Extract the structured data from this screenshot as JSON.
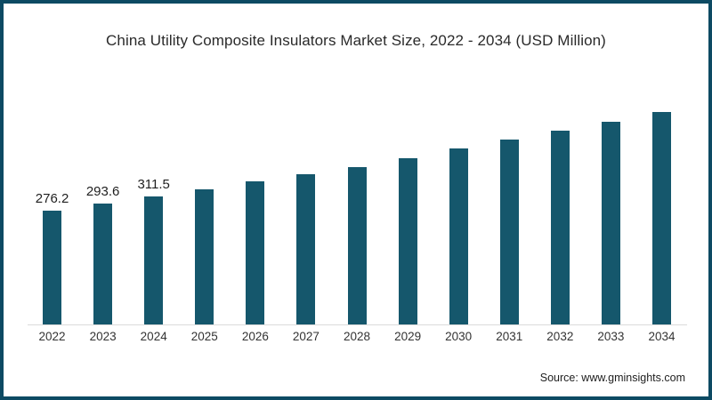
{
  "page": {
    "background": "#ffffff",
    "border_color": "#0d4a63"
  },
  "chart_data": {
    "type": "bar",
    "title": "China Utility Composite Insulators Market Size, 2022 - 2034 (USD Million)",
    "xlabel": "",
    "ylabel": "",
    "grid": false,
    "legend_position": "none",
    "categories": [
      "2022",
      "2023",
      "2024",
      "2025",
      "2026",
      "2027",
      "2028",
      "2029",
      "2030",
      "2031",
      "2032",
      "2033",
      "2034"
    ],
    "values": [
      276.2,
      293.6,
      311.5,
      329,
      347,
      364,
      383,
      404,
      428,
      448,
      470,
      492,
      516
    ],
    "data_labels": [
      "276.2",
      "293.6",
      "311.5",
      "",
      "",
      "",
      "",
      "",
      "",
      "",
      "",
      "",
      ""
    ],
    "bar_color": "#15576c",
    "axis_line_color": "#dadada",
    "ylim": [
      0,
      560
    ]
  },
  "footer": {
    "source": "Source: www.gminsights.com"
  }
}
